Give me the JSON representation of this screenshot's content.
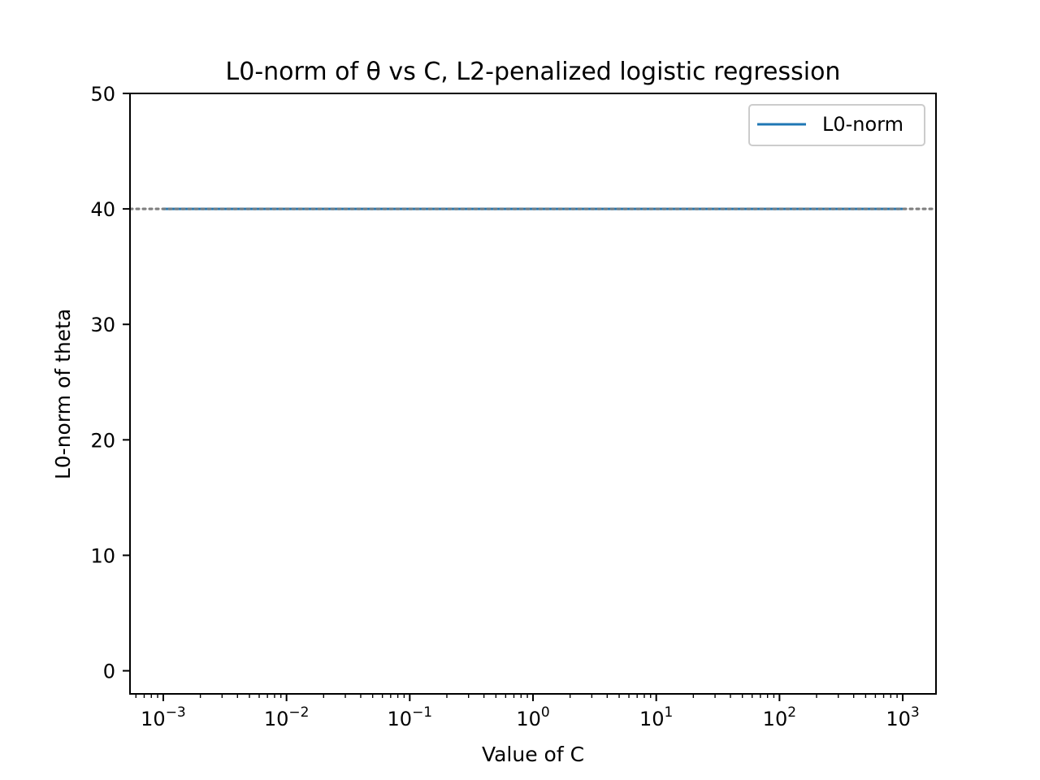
{
  "chart_data": {
    "type": "line",
    "title": "L0-norm of θ vs C, L2-penalized logistic regression",
    "xlabel": "Value of C",
    "ylabel": "L0-norm of theta",
    "xscale": "log",
    "xlim": [
      0.000537,
      1862
    ],
    "ylim": [
      -2,
      50
    ],
    "x_ticks": [
      {
        "base": "10",
        "exp": "−3",
        "value": 0.001
      },
      {
        "base": "10",
        "exp": "−2",
        "value": 0.01
      },
      {
        "base": "10",
        "exp": "−1",
        "value": 0.1
      },
      {
        "base": "10",
        "exp": "0",
        "value": 1
      },
      {
        "base": "10",
        "exp": "1",
        "value": 10
      },
      {
        "base": "10",
        "exp": "2",
        "value": 100
      },
      {
        "base": "10",
        "exp": "3",
        "value": 1000
      }
    ],
    "y_ticks": [
      0,
      10,
      20,
      30,
      40,
      50
    ],
    "grid": false,
    "legend": {
      "position": "top-right",
      "entries": [
        "L0-norm"
      ]
    },
    "series": [
      {
        "name": "L0-norm",
        "color": "#1f77b4",
        "x": [
          0.001,
          0.01,
          0.1,
          1,
          10,
          100,
          1000
        ],
        "y": [
          40,
          40,
          40,
          40,
          40,
          40,
          40
        ]
      }
    ],
    "reference_line": {
      "y": 40,
      "style": "dotted",
      "color": "#808080"
    }
  }
}
